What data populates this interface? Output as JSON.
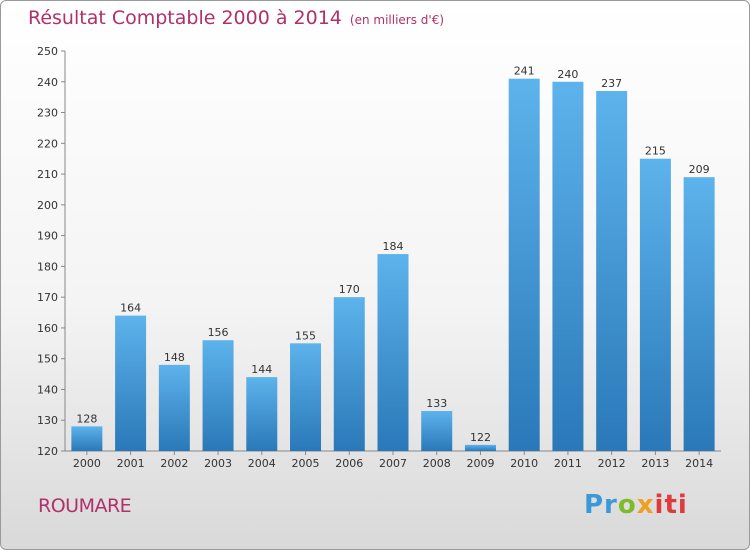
{
  "title": "Résultat Comptable 2000 à 2014",
  "unit": "(en milliers d'€)",
  "commune": "ROUMARE",
  "logo": {
    "p1": "Pr",
    "p2": "o",
    "p3": "x",
    "p4": "iti"
  },
  "colors": {
    "bar_top": "#5db3ec",
    "bar_bottom": "#2a78b8",
    "title": "#b0306a"
  },
  "chart_data": {
    "type": "bar",
    "categories": [
      "2000",
      "2001",
      "2002",
      "2003",
      "2004",
      "2005",
      "2006",
      "2007",
      "2008",
      "2009",
      "2010",
      "2011",
      "2012",
      "2013",
      "2014"
    ],
    "values": [
      128,
      164,
      148,
      156,
      144,
      155,
      170,
      184,
      133,
      122,
      241,
      240,
      237,
      215,
      209
    ],
    "ylim": [
      120,
      250
    ],
    "yticks": [
      120,
      130,
      140,
      150,
      160,
      170,
      180,
      190,
      200,
      210,
      220,
      230,
      240,
      250
    ],
    "grid": false,
    "legend": "none"
  }
}
